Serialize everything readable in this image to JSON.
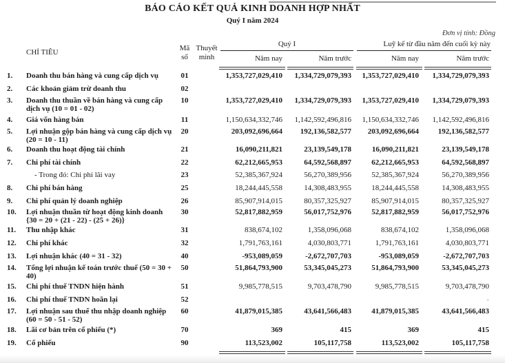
{
  "report": {
    "title": "BÁO CÁO KẾT QUẢ KINH DOANH HỢP NHẤT",
    "subtitle": "Quý I năm 2024",
    "unit": "Đơn vị tính: Đồng"
  },
  "header": {
    "indicator": "CHỈ TIÊU",
    "code": "Mã số",
    "note": "Thuyết minh",
    "quarter_group": "Quý I",
    "ytd_group": "Luỹ kế từ đầu năm đến cuối kỳ này",
    "this_year": "Năm nay",
    "last_year": "Năm trước"
  },
  "rows": [
    {
      "no": "1.",
      "label": "Doanh thu bán hàng và cung cấp dịch vụ",
      "code": "01",
      "values": [
        "1,353,727,029,410",
        "1,334,729,079,393",
        "1,353,727,029,410",
        "1,334,729,079,393"
      ],
      "bold": true
    },
    {
      "no": "2.",
      "label": "Các khoản giảm trừ doanh thu",
      "code": "02",
      "values": [
        "",
        "",
        "",
        ""
      ],
      "bold": true
    },
    {
      "no": "3.",
      "label": "Doanh thu thuần về bán hàng và cung cấp dịch vụ (10 = 01 - 02)",
      "code": "10",
      "values": [
        "1,353,727,029,410",
        "1,334,729,079,393",
        "1,353,727,029,410",
        "1,334,729,079,393"
      ],
      "bold": true
    },
    {
      "no": "4.",
      "label": "Giá vốn hàng bán",
      "code": "11",
      "values": [
        "1,150,634,332,746",
        "1,142,592,496,816",
        "1,150,634,332,746",
        "1,142,592,496,816"
      ],
      "bold": false
    },
    {
      "no": "5.",
      "label": "Lợi nhuận gộp bán hàng và cung cấp dịch vụ (20 = 10 - 11)",
      "code": "20",
      "values": [
        "203,092,696,664",
        "192,136,582,577",
        "203,092,696,664",
        "192,136,582,577"
      ],
      "bold": true
    },
    {
      "no": "6.",
      "label": "Doanh thu hoạt động tài chính",
      "code": "21",
      "values": [
        "16,090,211,821",
        "23,139,549,178",
        "16,090,211,821",
        "23,139,549,178"
      ],
      "bold": true
    },
    {
      "no": "7.",
      "label": "Chi phí tài chính",
      "code": "22",
      "values": [
        "62,212,665,953",
        "64,592,568,897",
        "62,212,665,953",
        "64,592,568,897"
      ],
      "bold": true
    },
    {
      "no": "",
      "label": "- Trong đó: Chi phí lãi vay",
      "code": "23",
      "values": [
        "52,385,367,924",
        "56,270,389,956",
        "52,385,367,924",
        "56,270,389,956"
      ],
      "bold": false,
      "sub": true
    },
    {
      "no": "8.",
      "label": "Chi phí bán hàng",
      "code": "25",
      "values": [
        "18,244,445,558",
        "14,308,483,955",
        "18,244,445,558",
        "14,308,483,955"
      ],
      "bold": false
    },
    {
      "no": "9.",
      "label": "Chi phí quản lý doanh nghiệp",
      "code": "26",
      "values": [
        "85,907,914,015",
        "80,357,325,927",
        "85,907,914,015",
        "80,357,325,927"
      ],
      "bold": false
    },
    {
      "no": "10.",
      "label": "Lợi nhuận thuần từ hoạt động kinh doanh {30 = 20 + (21 - 22) - (25 + 26)}",
      "code": "30",
      "values": [
        "52,817,882,959",
        "56,017,752,976",
        "52,817,882,959",
        "56,017,752,976"
      ],
      "bold": true
    },
    {
      "no": "11.",
      "label": "Thu nhập khác",
      "code": "31",
      "values": [
        "838,674,102",
        "1,358,096,068",
        "838,674,102",
        "1,358,096,068"
      ],
      "bold": false
    },
    {
      "no": "12.",
      "label": "Chi phí khác",
      "code": "32",
      "values": [
        "1,791,763,161",
        "4,030,803,771",
        "1,791,763,161",
        "4,030,803,771"
      ],
      "bold": false
    },
    {
      "no": "13.",
      "label": "Lợi nhuận khác (40 = 31 - 32)",
      "code": "40",
      "values": [
        "-953,089,059",
        "-2,672,707,703",
        "-953,089,059",
        "-2,672,707,703"
      ],
      "bold": true
    },
    {
      "no": "14.",
      "label": "Tổng lợi nhuận kế toán trước thuế (50 = 30 + 40)",
      "code": "50",
      "values": [
        "51,864,793,900",
        "53,345,045,273",
        "51,864,793,900",
        "53,345,045,273"
      ],
      "bold": true
    },
    {
      "no": "15.",
      "label": "Chi phí thuế TNDN hiện hành",
      "code": "51",
      "values": [
        "9,985,778,515",
        "9,703,478,790",
        "9,985,778,515",
        "9,703,478,790"
      ],
      "bold": false
    },
    {
      "no": "16.",
      "label": "Chi phí thuế TNDN hoãn lại",
      "code": "52",
      "values": [
        "",
        "",
        "",
        "-"
      ],
      "bold": false
    },
    {
      "no": "17.",
      "label": "Lợi nhuận sau thuế thu nhập doanh nghiệp (60 = 50 - 51 - 52)",
      "code": "60",
      "values": [
        "41,879,015,385",
        "43,641,566,483",
        "41,879,015,385",
        "43,641,566,483"
      ],
      "bold": true
    },
    {
      "no": "18.",
      "label": "Lãi cơ bản trên cổ phiếu (*)",
      "code": "70",
      "values": [
        "369",
        "415",
        "369",
        "415"
      ],
      "bold": true
    },
    {
      "no": "19.",
      "label": "Cổ phiếu",
      "code": "90",
      "values": [
        "113,523,002",
        "105,117,758",
        "113,523,002",
        "105,117,758"
      ],
      "bold": true
    }
  ]
}
